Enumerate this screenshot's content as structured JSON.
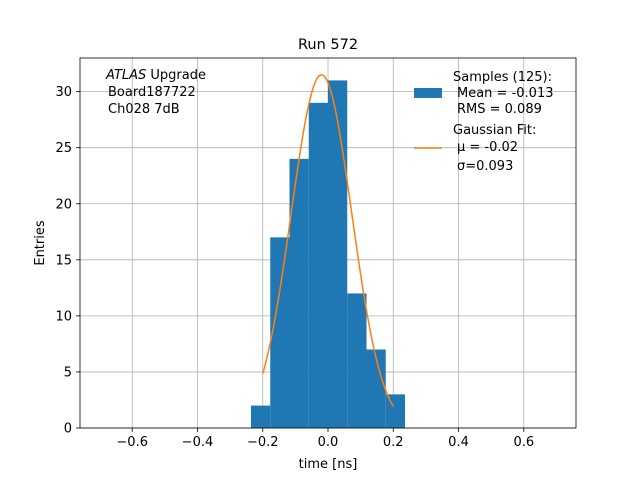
{
  "chart_data": {
    "type": "bar",
    "title": "Run 572",
    "xlabel": "time [ns]",
    "ylabel": "Entries",
    "xlim": [
      -0.76,
      0.76
    ],
    "ylim": [
      0,
      33
    ],
    "grid": true,
    "x_ticks": [
      -0.6,
      -0.4,
      -0.2,
      0.0,
      0.2,
      0.4,
      0.6
    ],
    "x_tick_labels": [
      "−0.6",
      "−0.4",
      "−0.2",
      "0.0",
      "0.2",
      "0.4",
      "0.6"
    ],
    "y_ticks": [
      0,
      5,
      10,
      15,
      20,
      25,
      30
    ],
    "y_tick_labels": [
      "0",
      "5",
      "10",
      "15",
      "20",
      "25",
      "30"
    ],
    "histogram": {
      "bin_edges": [
        -0.236,
        -0.177,
        -0.118,
        -0.059,
        0.0,
        0.059,
        0.118,
        0.177,
        0.236
      ],
      "counts": [
        2,
        17,
        24,
        29,
        31,
        12,
        7,
        3
      ],
      "color": "#1f77b4"
    },
    "fit_curve": {
      "color": "#ff7f0e",
      "amplitude": 31.5,
      "mu": -0.02,
      "sigma": 0.093,
      "x_range": [
        -0.2,
        0.2
      ]
    },
    "annotation": {
      "italic": "ATLAS",
      "rest": " Upgrade",
      "line2": "Board187722",
      "line3": "Ch028 7dB"
    },
    "legend": {
      "position": "top-right",
      "entries": [
        {
          "lines": [
            "Samples (125):",
            "Mean = -0.013",
            "RMS = 0.089"
          ],
          "kind": "patch"
        },
        {
          "lines": [
            "Gaussian Fit:",
            "μ = -0.02",
            "σ=0.093"
          ],
          "kind": "line"
        }
      ]
    }
  }
}
